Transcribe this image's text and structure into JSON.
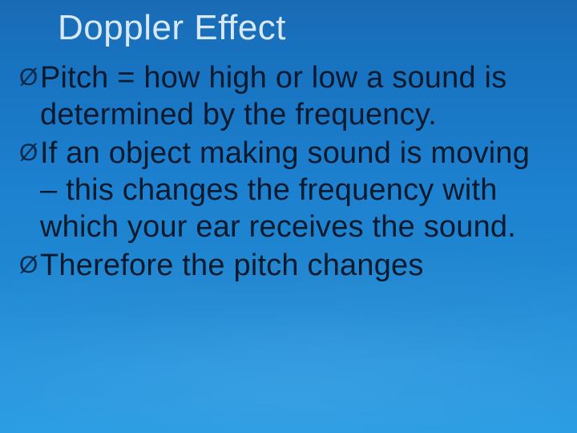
{
  "slide": {
    "title": "Doppler Effect",
    "bullets": [
      {
        "marker": "Ø",
        "text": "Pitch = how high or low a sound is determined by the frequency."
      },
      {
        "marker": "Ø",
        "text": "If an object making sound is moving – this changes the frequency with which your ear receives the sound."
      },
      {
        "marker": "Ø",
        "text": "Therefore the pitch changes"
      }
    ],
    "style": {
      "title_color": "#d9e8f5",
      "title_fontsize": 44,
      "body_color": "#0a1a2e",
      "body_fontsize": 38,
      "bullet_marker_color": "#0a2a4a",
      "background_gradient_top": "#1a6bb5",
      "background_gradient_bottom": "#289ce3",
      "font_family": "Arial"
    }
  }
}
